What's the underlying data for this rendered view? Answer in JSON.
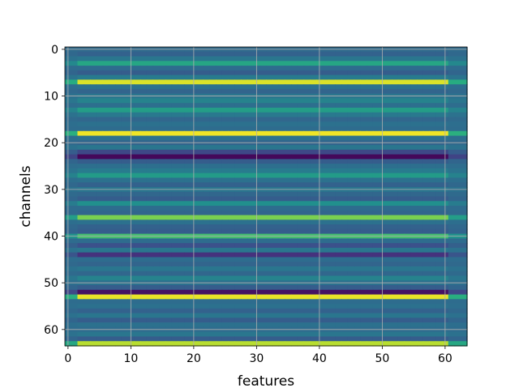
{
  "chart_data": {
    "type": "heatmap",
    "title": "",
    "xlabel": "features",
    "ylabel": "channels",
    "xlim": [
      -0.5,
      63.5
    ],
    "ylim": [
      63.5,
      -0.5
    ],
    "x_ticks": [
      0,
      10,
      20,
      30,
      40,
      50,
      60
    ],
    "y_ticks": [
      0,
      10,
      20,
      30,
      40,
      50,
      60
    ],
    "grid": true,
    "colormap": "viridis",
    "value_range": [
      0,
      1
    ],
    "n_features": 64,
    "n_channels": 64,
    "row_values": [
      0.35,
      0.32,
      0.4,
      0.6,
      0.36,
      0.3,
      0.42,
      0.95,
      0.38,
      0.33,
      0.4,
      0.45,
      0.37,
      0.56,
      0.41,
      0.34,
      0.38,
      0.36,
      0.98,
      0.38,
      0.33,
      0.4,
      0.22,
      0.02,
      0.3,
      0.37,
      0.42,
      0.55,
      0.38,
      0.32,
      0.4,
      0.34,
      0.3,
      0.5,
      0.36,
      0.33,
      0.8,
      0.38,
      0.32,
      0.3,
      0.7,
      0.36,
      0.25,
      0.4,
      0.15,
      0.36,
      0.33,
      0.4,
      0.34,
      0.45,
      0.38,
      0.3,
      0.05,
      0.97,
      0.36,
      0.38,
      0.32,
      0.4,
      0.3,
      0.38,
      0.36,
      0.4,
      0.3,
      0.9
    ],
    "edge_columns": {
      "fade_left_until": 2,
      "fade_right_from": 60
    }
  },
  "colors": {
    "viridis_low": "#440154",
    "viridis_mid": "#21918c",
    "viridis_high": "#fde725",
    "grid": "#b0b0b0"
  }
}
